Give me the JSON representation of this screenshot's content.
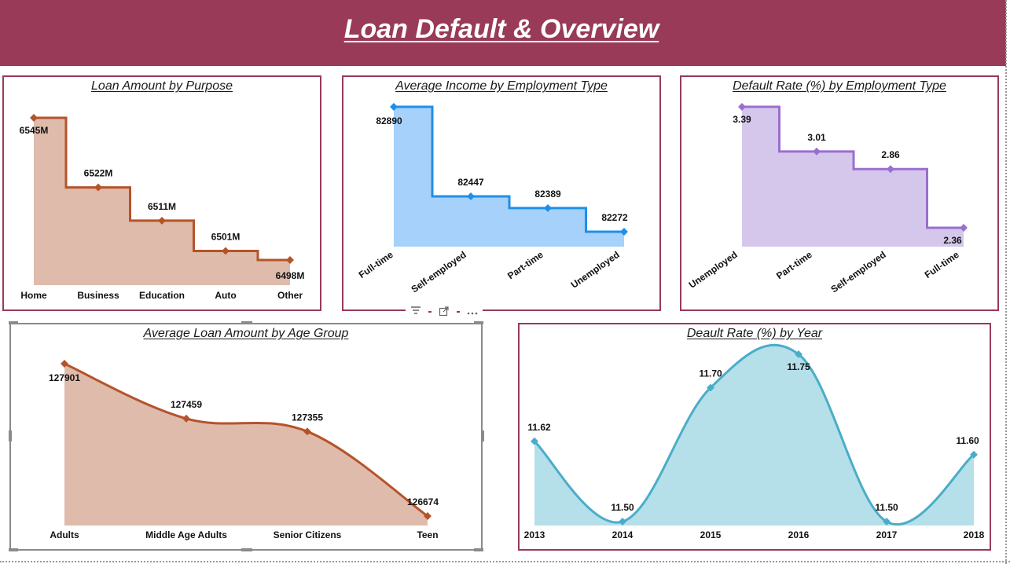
{
  "page": {
    "title": "Loan Default & Overview",
    "colors": {
      "header": "#983a58",
      "border": "#983a58"
    }
  },
  "visual_toolbar": {
    "icons": [
      "filter-icon",
      "focus-mode-icon",
      "more-options-icon"
    ]
  },
  "chart_data": [
    {
      "id": "loan-amount-by-purpose",
      "type": "area",
      "style": "stepped",
      "title": "Loan Amount by Purpose",
      "categories": [
        "Home",
        "Business",
        "Education",
        "Auto",
        "Other"
      ],
      "values": [
        6545,
        6522,
        6511,
        6501,
        6498
      ],
      "labels": [
        "6545M",
        "6522M",
        "6511M",
        "6501M",
        "6498M"
      ],
      "unit": "M",
      "color": "#b5532a",
      "fill": "#dfbbab"
    },
    {
      "id": "average-income-by-employment-type",
      "type": "area",
      "style": "stepped",
      "title": "Average Income by Employment Type",
      "categories": [
        "Full-time",
        "Self-employed",
        "Part-time",
        "Unemployed"
      ],
      "values": [
        82890,
        82447,
        82389,
        82272
      ],
      "labels": [
        "82890",
        "82447",
        "82389",
        "82272"
      ],
      "color": "#1e8fea",
      "fill": "#a5d1fb"
    },
    {
      "id": "default-rate-by-employment-type",
      "type": "area",
      "style": "stepped",
      "title": "Default Rate (%) by Employment Type",
      "categories": [
        "Unemployed",
        "Part-time",
        "Self-employed",
        "Full-time"
      ],
      "values": [
        3.39,
        3.01,
        2.86,
        2.36
      ],
      "labels": [
        "3.39",
        "3.01",
        "2.86",
        "2.36"
      ],
      "color": "#9a6fcf",
      "fill": "#d5c7ec"
    },
    {
      "id": "average-loan-amount-by-age-group",
      "type": "area",
      "style": "smooth",
      "title": "Average Loan Amount by Age Group",
      "categories": [
        "Adults",
        "Middle Age Adults",
        "Senior Citizens",
        "Teen"
      ],
      "values": [
        127901,
        127459,
        127355,
        126674
      ],
      "labels": [
        "127901",
        "127459",
        "127355",
        "126674"
      ],
      "color": "#b5532a",
      "fill": "#dfbbab"
    },
    {
      "id": "default-rate-by-year",
      "type": "area",
      "style": "smooth",
      "title": "Deault Rate (%) by Year",
      "categories": [
        "2013",
        "2014",
        "2015",
        "2016",
        "2017",
        "2018"
      ],
      "values": [
        11.62,
        11.5,
        11.7,
        11.75,
        11.5,
        11.6
      ],
      "labels": [
        "11.62",
        "11.50",
        "11.70",
        "11.75",
        "11.50",
        "11.60"
      ],
      "color": "#4aadc8",
      "fill": "#b5dfe9"
    }
  ]
}
